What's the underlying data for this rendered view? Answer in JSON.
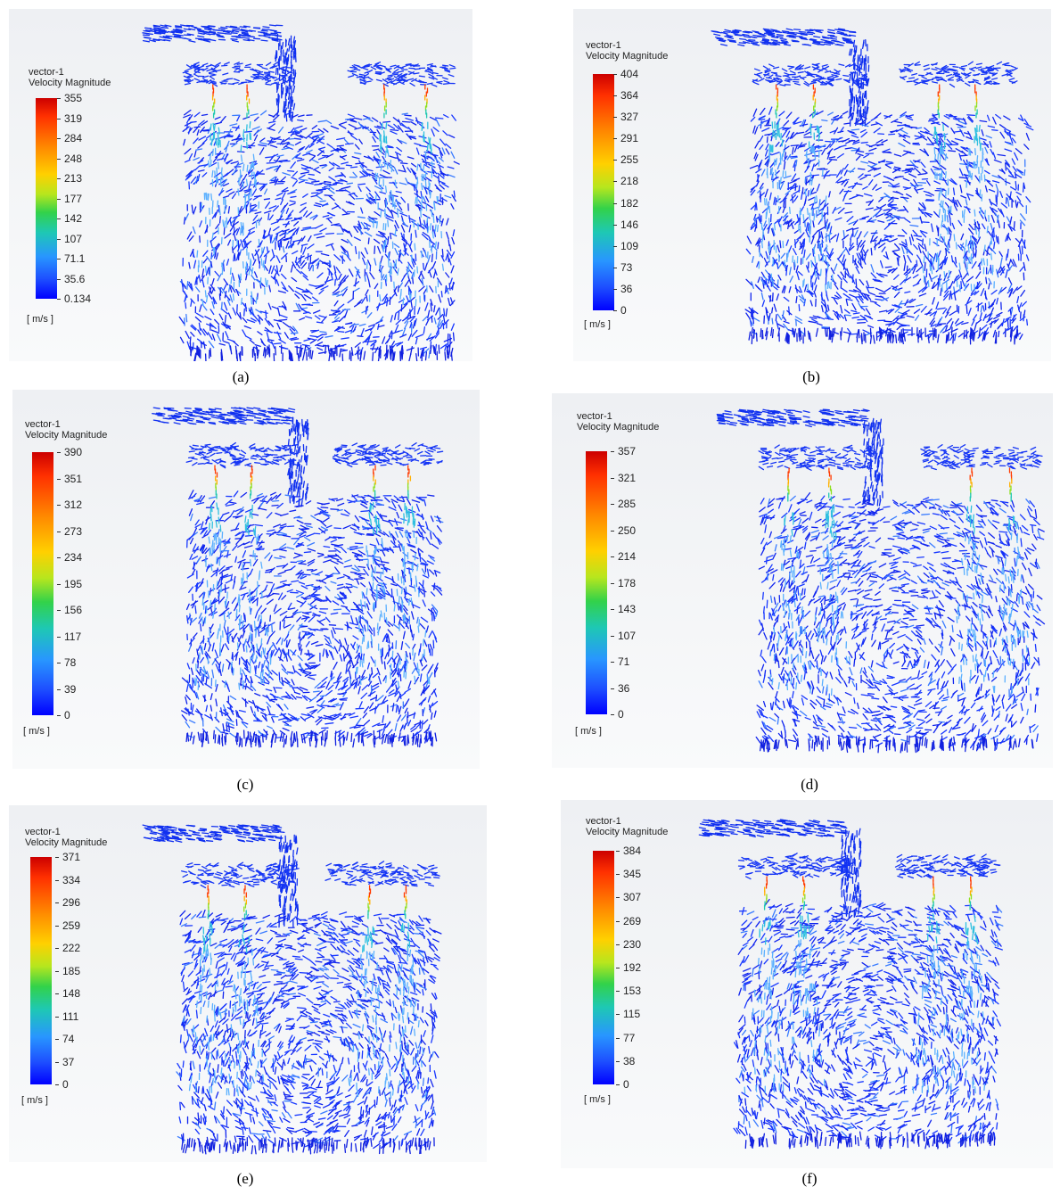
{
  "panels": [
    {
      "id": "a",
      "caption": "(a)",
      "legend": {
        "title_1": "vector-1",
        "title_2": "Velocity Magnitude",
        "unit": "[ m/s ]",
        "ticks": [
          "355",
          "319",
          "284",
          "248",
          "213",
          "177",
          "142",
          "107",
          "71.1",
          "35.6",
          "0.134"
        ],
        "max": 355,
        "min": 0.134
      }
    },
    {
      "id": "b",
      "caption": "(b)",
      "legend": {
        "title_1": "vector-1",
        "title_2": "Velocity Magnitude",
        "unit": "[ m/s ]",
        "ticks": [
          "404",
          "364",
          "327",
          "291",
          "255",
          "218",
          "182",
          "146",
          "109",
          "73",
          "36",
          "0"
        ],
        "max": 404,
        "min": 0
      }
    },
    {
      "id": "c",
      "caption": "(c)",
      "legend": {
        "title_1": "vector-1",
        "title_2": "Velocity Magnitude",
        "unit": "[ m/s ]",
        "ticks": [
          "390",
          "351",
          "312",
          "273",
          "234",
          "195",
          "156",
          "117",
          "78",
          "39",
          "0"
        ],
        "max": 390,
        "min": 0
      }
    },
    {
      "id": "d",
      "caption": "(d)",
      "legend": {
        "title_1": "vector-1",
        "title_2": "Velocity Magnitude",
        "unit": "[ m/s ]",
        "ticks": [
          "357",
          "321",
          "285",
          "250",
          "214",
          "178",
          "143",
          "107",
          "71",
          "36",
          "0"
        ],
        "max": 357,
        "min": 0
      }
    },
    {
      "id": "e",
      "caption": "(e)",
      "legend": {
        "title_1": "vector-1",
        "title_2": "Velocity Magnitude",
        "unit": "[ m/s ]",
        "ticks": [
          "371",
          "334",
          "296",
          "259",
          "222",
          "185",
          "148",
          "111",
          "74",
          "37",
          "0"
        ],
        "max": 371,
        "min": 0
      }
    },
    {
      "id": "f",
      "caption": "(f)",
      "legend": {
        "title_1": "vector-1",
        "title_2": "Velocity Magnitude",
        "unit": "[ m/s ]",
        "ticks": [
          "384",
          "345",
          "307",
          "269",
          "230",
          "192",
          "153",
          "115",
          "77",
          "38",
          "0"
        ],
        "max": 384,
        "min": 0
      }
    }
  ],
  "colors": {
    "panel_bg_top": "#eef0f3",
    "panel_bg_bottom": "#f9fafb",
    "vector_low": "#0000ff",
    "vector_mid": "#3aa0ff",
    "vector_high": "#ff2000"
  }
}
